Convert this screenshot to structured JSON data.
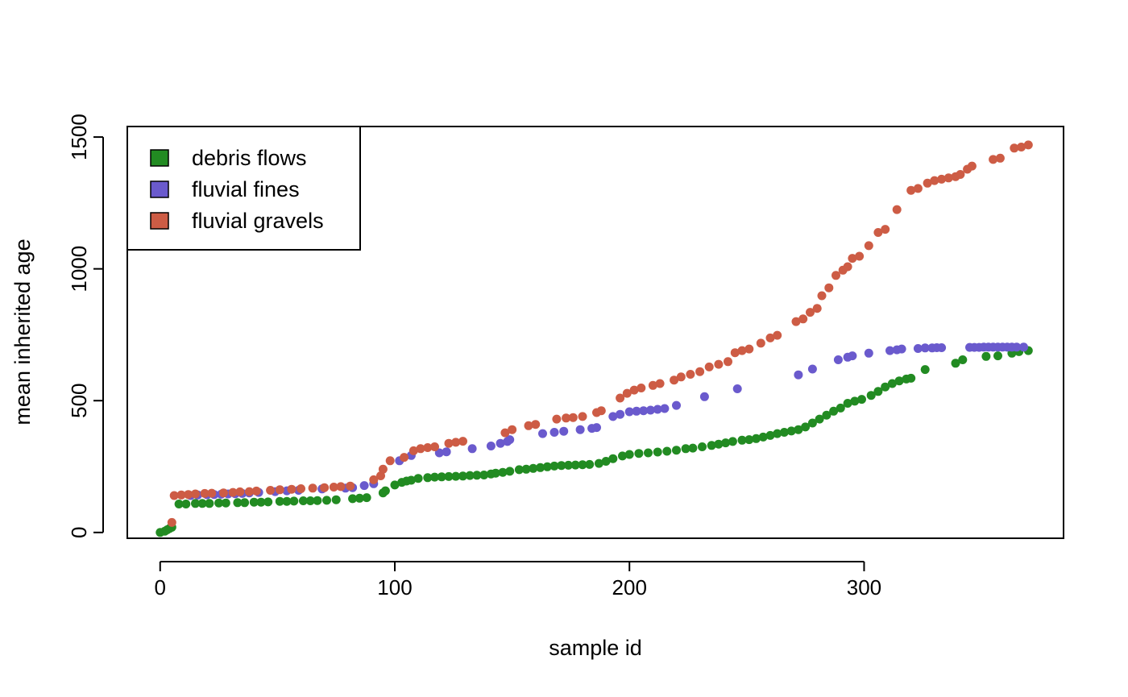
{
  "chart_data": {
    "type": "scatter",
    "title": "",
    "xlabel": "sample id",
    "ylabel": "mean inherited age",
    "xlim": [
      -14,
      385
    ],
    "ylim": [
      -22,
      1540
    ],
    "xticks": [
      0,
      100,
      200,
      300
    ],
    "yticks": [
      0,
      500,
      1000,
      1500
    ],
    "grid": false,
    "legend_position": "top-left",
    "series": [
      {
        "name": "debris flows",
        "color": "#228B22",
        "points": [
          [
            0,
            0
          ],
          [
            2,
            5
          ],
          [
            3,
            10
          ],
          [
            4,
            15
          ],
          [
            5,
            20
          ],
          [
            8,
            108
          ],
          [
            11,
            108
          ],
          [
            15,
            110
          ],
          [
            18,
            110
          ],
          [
            21,
            110
          ],
          [
            25,
            112
          ],
          [
            28,
            112
          ],
          [
            33,
            113
          ],
          [
            36,
            113
          ],
          [
            40,
            115
          ],
          [
            43,
            115
          ],
          [
            46,
            116
          ],
          [
            51,
            118
          ],
          [
            54,
            118
          ],
          [
            57,
            119
          ],
          [
            61,
            120
          ],
          [
            64,
            120
          ],
          [
            67,
            121
          ],
          [
            71,
            122
          ],
          [
            75,
            124
          ],
          [
            82,
            128
          ],
          [
            85,
            130
          ],
          [
            88,
            132
          ],
          [
            95,
            150
          ],
          [
            96,
            158
          ],
          [
            100,
            180
          ],
          [
            103,
            190
          ],
          [
            105,
            195
          ],
          [
            107,
            198
          ],
          [
            110,
            205
          ],
          [
            114,
            208
          ],
          [
            117,
            210
          ],
          [
            120,
            211
          ],
          [
            123,
            212
          ],
          [
            126,
            213
          ],
          [
            129,
            214
          ],
          [
            132,
            216
          ],
          [
            135,
            217
          ],
          [
            138,
            218
          ],
          [
            141,
            222
          ],
          [
            143,
            225
          ],
          [
            146,
            228
          ],
          [
            149,
            232
          ],
          [
            153,
            238
          ],
          [
            156,
            240
          ],
          [
            159,
            243
          ],
          [
            162,
            246
          ],
          [
            165,
            249
          ],
          [
            168,
            252
          ],
          [
            171,
            254
          ],
          [
            174,
            255
          ],
          [
            177,
            256
          ],
          [
            180,
            257
          ],
          [
            183,
            258
          ],
          [
            187,
            262
          ],
          [
            190,
            270
          ],
          [
            193,
            280
          ],
          [
            197,
            290
          ],
          [
            200,
            296
          ],
          [
            204,
            300
          ],
          [
            208,
            302
          ],
          [
            212,
            305
          ],
          [
            216,
            308
          ],
          [
            220,
            312
          ],
          [
            224,
            318
          ],
          [
            227,
            320
          ],
          [
            231,
            325
          ],
          [
            235,
            330
          ],
          [
            238,
            335
          ],
          [
            241,
            340
          ],
          [
            244,
            345
          ],
          [
            248,
            350
          ],
          [
            251,
            352
          ],
          [
            254,
            356
          ],
          [
            257,
            362
          ],
          [
            260,
            368
          ],
          [
            263,
            375
          ],
          [
            266,
            380
          ],
          [
            269,
            385
          ],
          [
            272,
            390
          ],
          [
            275,
            400
          ],
          [
            278,
            415
          ],
          [
            281,
            430
          ],
          [
            284,
            445
          ],
          [
            287,
            460
          ],
          [
            290,
            472
          ],
          [
            293,
            490
          ],
          [
            296,
            498
          ],
          [
            299,
            505
          ],
          [
            303,
            520
          ],
          [
            306,
            535
          ],
          [
            309,
            552
          ],
          [
            312,
            565
          ],
          [
            315,
            575
          ],
          [
            318,
            582
          ],
          [
            320,
            585
          ],
          [
            326,
            618
          ],
          [
            339,
            642
          ],
          [
            342,
            655
          ],
          [
            352,
            668
          ],
          [
            357,
            670
          ],
          [
            363,
            680
          ],
          [
            366,
            686
          ],
          [
            370,
            690
          ]
        ]
      },
      {
        "name": "fluvial fines",
        "color": "#6A5ACD",
        "points": [
          [
            13,
            140
          ],
          [
            16,
            142
          ],
          [
            20,
            143
          ],
          [
            23,
            144
          ],
          [
            26,
            145
          ],
          [
            29,
            146
          ],
          [
            32,
            147
          ],
          [
            35,
            148
          ],
          [
            38,
            150
          ],
          [
            42,
            152
          ],
          [
            49,
            155
          ],
          [
            54,
            158
          ],
          [
            59,
            160
          ],
          [
            69,
            165
          ],
          [
            79,
            168
          ],
          [
            82,
            170
          ],
          [
            87,
            178
          ],
          [
            91,
            185
          ],
          [
            102,
            272
          ],
          [
            107,
            292
          ],
          [
            119,
            302
          ],
          [
            122,
            306
          ],
          [
            133,
            318
          ],
          [
            141,
            328
          ],
          [
            145,
            338
          ],
          [
            148,
            345
          ],
          [
            149,
            352
          ],
          [
            163,
            375
          ],
          [
            168,
            380
          ],
          [
            172,
            384
          ],
          [
            179,
            390
          ],
          [
            184,
            395
          ],
          [
            186,
            398
          ],
          [
            193,
            440
          ],
          [
            196,
            448
          ],
          [
            200,
            458
          ],
          [
            203,
            460
          ],
          [
            206,
            462
          ],
          [
            209,
            464
          ],
          [
            212,
            467
          ],
          [
            215,
            470
          ],
          [
            220,
            482
          ],
          [
            232,
            515
          ],
          [
            246,
            545
          ],
          [
            272,
            598
          ],
          [
            278,
            620
          ],
          [
            289,
            655
          ],
          [
            293,
            665
          ],
          [
            295,
            670
          ],
          [
            302,
            680
          ],
          [
            311,
            690
          ],
          [
            314,
            693
          ],
          [
            316,
            696
          ],
          [
            323,
            698
          ],
          [
            326,
            700
          ],
          [
            329,
            700
          ],
          [
            331,
            701
          ],
          [
            333,
            701
          ],
          [
            345,
            702
          ],
          [
            347,
            702
          ],
          [
            349,
            702
          ],
          [
            351,
            703
          ],
          [
            353,
            703
          ],
          [
            355,
            703
          ],
          [
            357,
            703
          ],
          [
            359,
            703
          ],
          [
            361,
            703
          ],
          [
            363,
            703
          ],
          [
            365,
            703
          ],
          [
            368,
            703
          ]
        ]
      },
      {
        "name": "fluvial gravels",
        "color": "#CD5C45",
        "points": [
          [
            5,
            38
          ],
          [
            6,
            140
          ],
          [
            9,
            142
          ],
          [
            12,
            144
          ],
          [
            15,
            146
          ],
          [
            19,
            148
          ],
          [
            22,
            149
          ],
          [
            27,
            150
          ],
          [
            31,
            152
          ],
          [
            34,
            154
          ],
          [
            38,
            155
          ],
          [
            41,
            157
          ],
          [
            47,
            160
          ],
          [
            51,
            162
          ],
          [
            56,
            164
          ],
          [
            60,
            166
          ],
          [
            65,
            168
          ],
          [
            70,
            170
          ],
          [
            74,
            172
          ],
          [
            77,
            174
          ],
          [
            81,
            176
          ],
          [
            91,
            200
          ],
          [
            94,
            215
          ],
          [
            95,
            240
          ],
          [
            98,
            272
          ],
          [
            104,
            285
          ],
          [
            108,
            310
          ],
          [
            111,
            318
          ],
          [
            114,
            322
          ],
          [
            117,
            325
          ],
          [
            123,
            338
          ],
          [
            126,
            342
          ],
          [
            129,
            346
          ],
          [
            147,
            378
          ],
          [
            150,
            390
          ],
          [
            157,
            405
          ],
          [
            160,
            410
          ],
          [
            169,
            430
          ],
          [
            173,
            434
          ],
          [
            176,
            436
          ],
          [
            180,
            440
          ],
          [
            186,
            455
          ],
          [
            188,
            462
          ],
          [
            196,
            510
          ],
          [
            199,
            528
          ],
          [
            202,
            540
          ],
          [
            205,
            548
          ],
          [
            210,
            558
          ],
          [
            213,
            565
          ],
          [
            219,
            578
          ],
          [
            222,
            590
          ],
          [
            226,
            600
          ],
          [
            230,
            610
          ],
          [
            234,
            628
          ],
          [
            238,
            638
          ],
          [
            242,
            648
          ],
          [
            245,
            682
          ],
          [
            248,
            690
          ],
          [
            251,
            696
          ],
          [
            256,
            718
          ],
          [
            260,
            738
          ],
          [
            263,
            748
          ],
          [
            271,
            800
          ],
          [
            274,
            810
          ],
          [
            277,
            835
          ],
          [
            280,
            850
          ],
          [
            282,
            898
          ],
          [
            285,
            928
          ],
          [
            288,
            975
          ],
          [
            291,
            995
          ],
          [
            293,
            1008
          ],
          [
            295,
            1040
          ],
          [
            298,
            1048
          ],
          [
            302,
            1088
          ],
          [
            306,
            1138
          ],
          [
            309,
            1150
          ],
          [
            314,
            1225
          ],
          [
            320,
            1298
          ],
          [
            323,
            1305
          ],
          [
            327,
            1325
          ],
          [
            330,
            1335
          ],
          [
            333,
            1340
          ],
          [
            336,
            1345
          ],
          [
            339,
            1350
          ],
          [
            341,
            1358
          ],
          [
            344,
            1378
          ],
          [
            346,
            1390
          ],
          [
            355,
            1415
          ],
          [
            358,
            1420
          ],
          [
            364,
            1458
          ],
          [
            367,
            1462
          ],
          [
            370,
            1470
          ]
        ]
      }
    ]
  }
}
